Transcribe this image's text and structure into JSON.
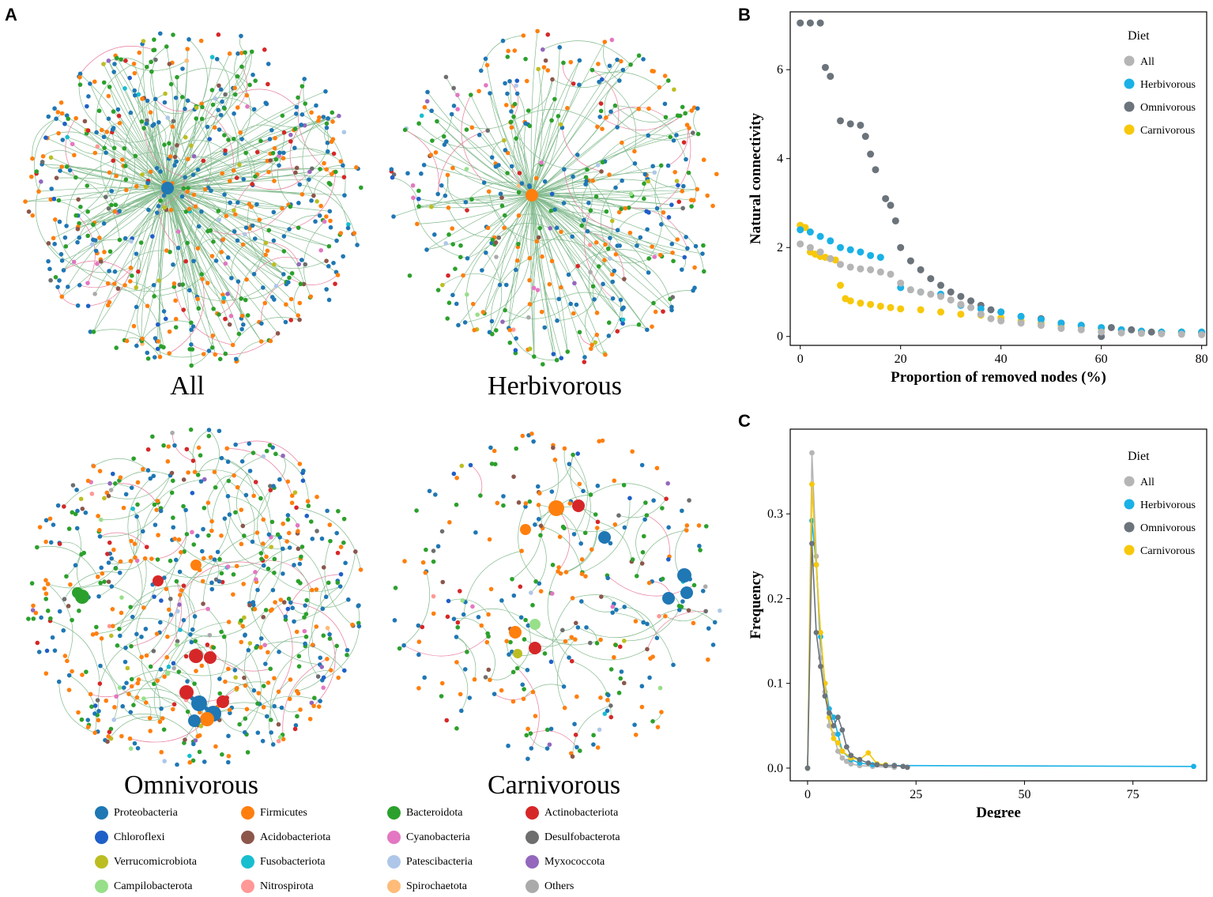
{
  "panel_labels": {
    "a": "A",
    "b": "B",
    "c": "C"
  },
  "networks": {
    "all": {
      "title": "All",
      "hub_color": "#1f77b4",
      "node_count": 620
    },
    "herbivorous": {
      "title": "Herbivorous",
      "hub_color": "#ff7f0e",
      "node_count": 420
    },
    "omnivorous": {
      "title": "Omnivorous",
      "hub_color": "#2ca02c",
      "node_count": 620
    },
    "carnivorous": {
      "title": "Carnivorous",
      "hub_color": "#1f77b4",
      "node_count": 300
    }
  },
  "phyla_legend": [
    {
      "name": "Proteobacteria",
      "color": "#1f77b4"
    },
    {
      "name": "Firmicutes",
      "color": "#ff7f0e"
    },
    {
      "name": "Bacteroidota",
      "color": "#2ca02c"
    },
    {
      "name": "Actinobacteriota",
      "color": "#d62728"
    },
    {
      "name": "Chloroflexi",
      "color": "#1f5fc8"
    },
    {
      "name": "Acidobacteriota",
      "color": "#8c564b"
    },
    {
      "name": "Cyanobacteria",
      "color": "#e377c2"
    },
    {
      "name": "Desulfobacterota",
      "color": "#6e6e6e"
    },
    {
      "name": "Verrucomicrobiota",
      "color": "#bcbd22"
    },
    {
      "name": "Fusobacteriota",
      "color": "#17becf"
    },
    {
      "name": "Patescibacteria",
      "color": "#aec7e8"
    },
    {
      "name": "Myxococcota",
      "color": "#9467bd"
    },
    {
      "name": "Campilobacterota",
      "color": "#98df8a"
    },
    {
      "name": "Nitrospirota",
      "color": "#ff9896"
    },
    {
      "name": "Spirochaetota",
      "color": "#ffbb78"
    },
    {
      "name": "Others",
      "color": "#aaaaaa"
    }
  ],
  "edge_colors": {
    "positive": "#5aa469",
    "negative": "#e0507a"
  },
  "series_colors": {
    "All": "#b5b5b5",
    "Herbivorous": "#1ab1e6",
    "Omnivorous": "#6b737b",
    "Carnivorous": "#f7c80a"
  },
  "chart_data": [
    {
      "type": "scatter",
      "xlabel": "Proportion of removed nodes (%)",
      "ylabel": "Natural connectivity",
      "xlim": [
        -2,
        81
      ],
      "ylim": [
        -0.2,
        7.3
      ],
      "xticks": [
        0,
        20,
        40,
        60,
        80
      ],
      "yticks": [
        0,
        2,
        4,
        6
      ],
      "legend_title": "Diet",
      "legend_position": "top-right",
      "series": [
        {
          "name": "All",
          "points": [
            [
              0,
              2.08
            ],
            [
              2,
              2.0
            ],
            [
              4,
              1.9
            ],
            [
              6,
              1.75
            ],
            [
              8,
              1.62
            ],
            [
              10,
              1.56
            ],
            [
              12,
              1.52
            ],
            [
              14,
              1.5
            ],
            [
              16,
              1.45
            ],
            [
              18,
              1.4
            ],
            [
              20,
              1.2
            ],
            [
              22,
              1.05
            ],
            [
              24,
              1.0
            ],
            [
              26,
              0.95
            ],
            [
              28,
              0.9
            ],
            [
              30,
              0.82
            ],
            [
              32,
              0.72
            ],
            [
              34,
              0.65
            ],
            [
              36,
              0.5
            ],
            [
              38,
              0.4
            ],
            [
              40,
              0.35
            ],
            [
              44,
              0.3
            ],
            [
              48,
              0.25
            ],
            [
              52,
              0.18
            ],
            [
              56,
              0.15
            ],
            [
              60,
              0.1
            ],
            [
              64,
              0.08
            ],
            [
              68,
              0.07
            ],
            [
              72,
              0.06
            ],
            [
              76,
              0.05
            ],
            [
              80,
              0.04
            ]
          ]
        },
        {
          "name": "Herbivorous",
          "points": [
            [
              0,
              2.4
            ],
            [
              2,
              2.35
            ],
            [
              4,
              2.25
            ],
            [
              6,
              2.15
            ],
            [
              8,
              2.0
            ],
            [
              10,
              1.95
            ],
            [
              12,
              1.9
            ],
            [
              14,
              1.82
            ],
            [
              16,
              1.78
            ],
            [
              20,
              1.1
            ],
            [
              24,
              1.0
            ],
            [
              28,
              0.95
            ],
            [
              32,
              0.7
            ],
            [
              36,
              0.62
            ],
            [
              40,
              0.55
            ],
            [
              44,
              0.45
            ],
            [
              48,
              0.38
            ],
            [
              52,
              0.3
            ],
            [
              56,
              0.25
            ],
            [
              60,
              0.2
            ],
            [
              64,
              0.15
            ],
            [
              68,
              0.12
            ],
            [
              72,
              0.1
            ],
            [
              76,
              0.1
            ],
            [
              80,
              0.1
            ]
          ]
        },
        {
          "name": "Omnivorous",
          "points": [
            [
              0,
              7.05
            ],
            [
              2,
              7.05
            ],
            [
              4,
              7.05
            ],
            [
              5,
              6.05
            ],
            [
              6,
              5.85
            ],
            [
              8,
              4.85
            ],
            [
              10,
              4.78
            ],
            [
              12,
              4.75
            ],
            [
              13,
              4.5
            ],
            [
              14,
              4.1
            ],
            [
              15,
              3.75
            ],
            [
              17,
              3.1
            ],
            [
              18,
              2.95
            ],
            [
              19,
              2.6
            ],
            [
              20,
              2.0
            ],
            [
              22,
              1.7
            ],
            [
              24,
              1.5
            ],
            [
              26,
              1.3
            ],
            [
              28,
              1.15
            ],
            [
              30,
              1.0
            ],
            [
              32,
              0.9
            ],
            [
              34,
              0.8
            ],
            [
              36,
              0.7
            ],
            [
              38,
              0.6
            ],
            [
              40,
              0.55
            ],
            [
              44,
              0.45
            ],
            [
              48,
              0.4
            ],
            [
              52,
              0.3
            ],
            [
              56,
              0.25
            ],
            [
              60,
              0.0
            ],
            [
              62,
              0.2
            ],
            [
              66,
              0.15
            ],
            [
              70,
              0.1
            ],
            [
              76,
              0.1
            ],
            [
              80,
              0.08
            ]
          ]
        },
        {
          "name": "Carnivorous",
          "points": [
            [
              0,
              2.5
            ],
            [
              1,
              2.45
            ],
            [
              2,
              1.9
            ],
            [
              3,
              1.85
            ],
            [
              4,
              1.8
            ],
            [
              5,
              1.78
            ],
            [
              6,
              1.75
            ],
            [
              7,
              1.72
            ],
            [
              8,
              1.15
            ],
            [
              9,
              0.85
            ],
            [
              10,
              0.8
            ],
            [
              12,
              0.75
            ],
            [
              14,
              0.72
            ],
            [
              16,
              0.68
            ],
            [
              18,
              0.65
            ],
            [
              20,
              0.62
            ],
            [
              24,
              0.6
            ],
            [
              28,
              0.55
            ],
            [
              32,
              0.5
            ],
            [
              36,
              0.48
            ],
            [
              40,
              0.42
            ],
            [
              44,
              0.35
            ],
            [
              48,
              0.3
            ],
            [
              52,
              0.25
            ],
            [
              56,
              0.22
            ],
            [
              60,
              0.18
            ],
            [
              64,
              0.15
            ],
            [
              68,
              0.12
            ],
            [
              72,
              0.1
            ],
            [
              76,
              0.1
            ],
            [
              80,
              0.1
            ]
          ]
        }
      ]
    },
    {
      "type": "line",
      "xlabel": "Degree",
      "ylabel": "Frequency",
      "xlim": [
        -4,
        92
      ],
      "ylim": [
        -0.015,
        0.4
      ],
      "xticks": [
        0,
        25,
        50,
        75
      ],
      "yticks": [
        0.0,
        0.1,
        0.2,
        0.3
      ],
      "ytick_labels": [
        "0.0",
        "0.1",
        "0.2",
        "0.3"
      ],
      "legend_title": "Diet",
      "legend_position": "top-right",
      "series": [
        {
          "name": "All",
          "points": [
            [
              0,
              0.0
            ],
            [
              1,
              0.372
            ],
            [
              2,
              0.25
            ],
            [
              3,
              0.13
            ],
            [
              4,
              0.09
            ],
            [
              5,
              0.05
            ],
            [
              6,
              0.04
            ],
            [
              7,
              0.02
            ],
            [
              8,
              0.012
            ],
            [
              9,
              0.008
            ],
            [
              10,
              0.005
            ],
            [
              12,
              0.003
            ],
            [
              15,
              0.002
            ],
            [
              20,
              0.001
            ]
          ]
        },
        {
          "name": "Herbivorous",
          "points": [
            [
              0,
              0.0
            ],
            [
              1,
              0.292
            ],
            [
              2,
              0.24
            ],
            [
              3,
              0.155
            ],
            [
              4,
              0.1
            ],
            [
              5,
              0.07
            ],
            [
              6,
              0.06
            ],
            [
              7,
              0.04
            ],
            [
              8,
              0.02
            ],
            [
              10,
              0.01
            ],
            [
              12,
              0.006
            ],
            [
              15,
              0.004
            ],
            [
              20,
              0.003
            ],
            [
              89,
              0.002
            ]
          ]
        },
        {
          "name": "Omnivorous",
          "points": [
            [
              0,
              0.0
            ],
            [
              1,
              0.265
            ],
            [
              2,
              0.16
            ],
            [
              3,
              0.12
            ],
            [
              4,
              0.085
            ],
            [
              5,
              0.065
            ],
            [
              6,
              0.05
            ],
            [
              7,
              0.06
            ],
            [
              8,
              0.045
            ],
            [
              9,
              0.025
            ],
            [
              10,
              0.015
            ],
            [
              12,
              0.01
            ],
            [
              14,
              0.006
            ],
            [
              16,
              0.004
            ],
            [
              18,
              0.003
            ],
            [
              20,
              0.003
            ],
            [
              22,
              0.002
            ],
            [
              23,
              0.001
            ]
          ]
        },
        {
          "name": "Carnivorous",
          "points": [
            [
              0,
              0.0
            ],
            [
              1,
              0.335
            ],
            [
              2,
              0.24
            ],
            [
              3,
              0.16
            ],
            [
              4,
              0.1
            ],
            [
              5,
              0.06
            ],
            [
              6,
              0.035
            ],
            [
              7,
              0.03
            ],
            [
              8,
              0.02
            ],
            [
              10,
              0.012
            ],
            [
              12,
              0.01
            ],
            [
              14,
              0.018
            ],
            [
              16,
              0.005
            ],
            [
              18,
              0.004
            ]
          ]
        }
      ]
    }
  ]
}
